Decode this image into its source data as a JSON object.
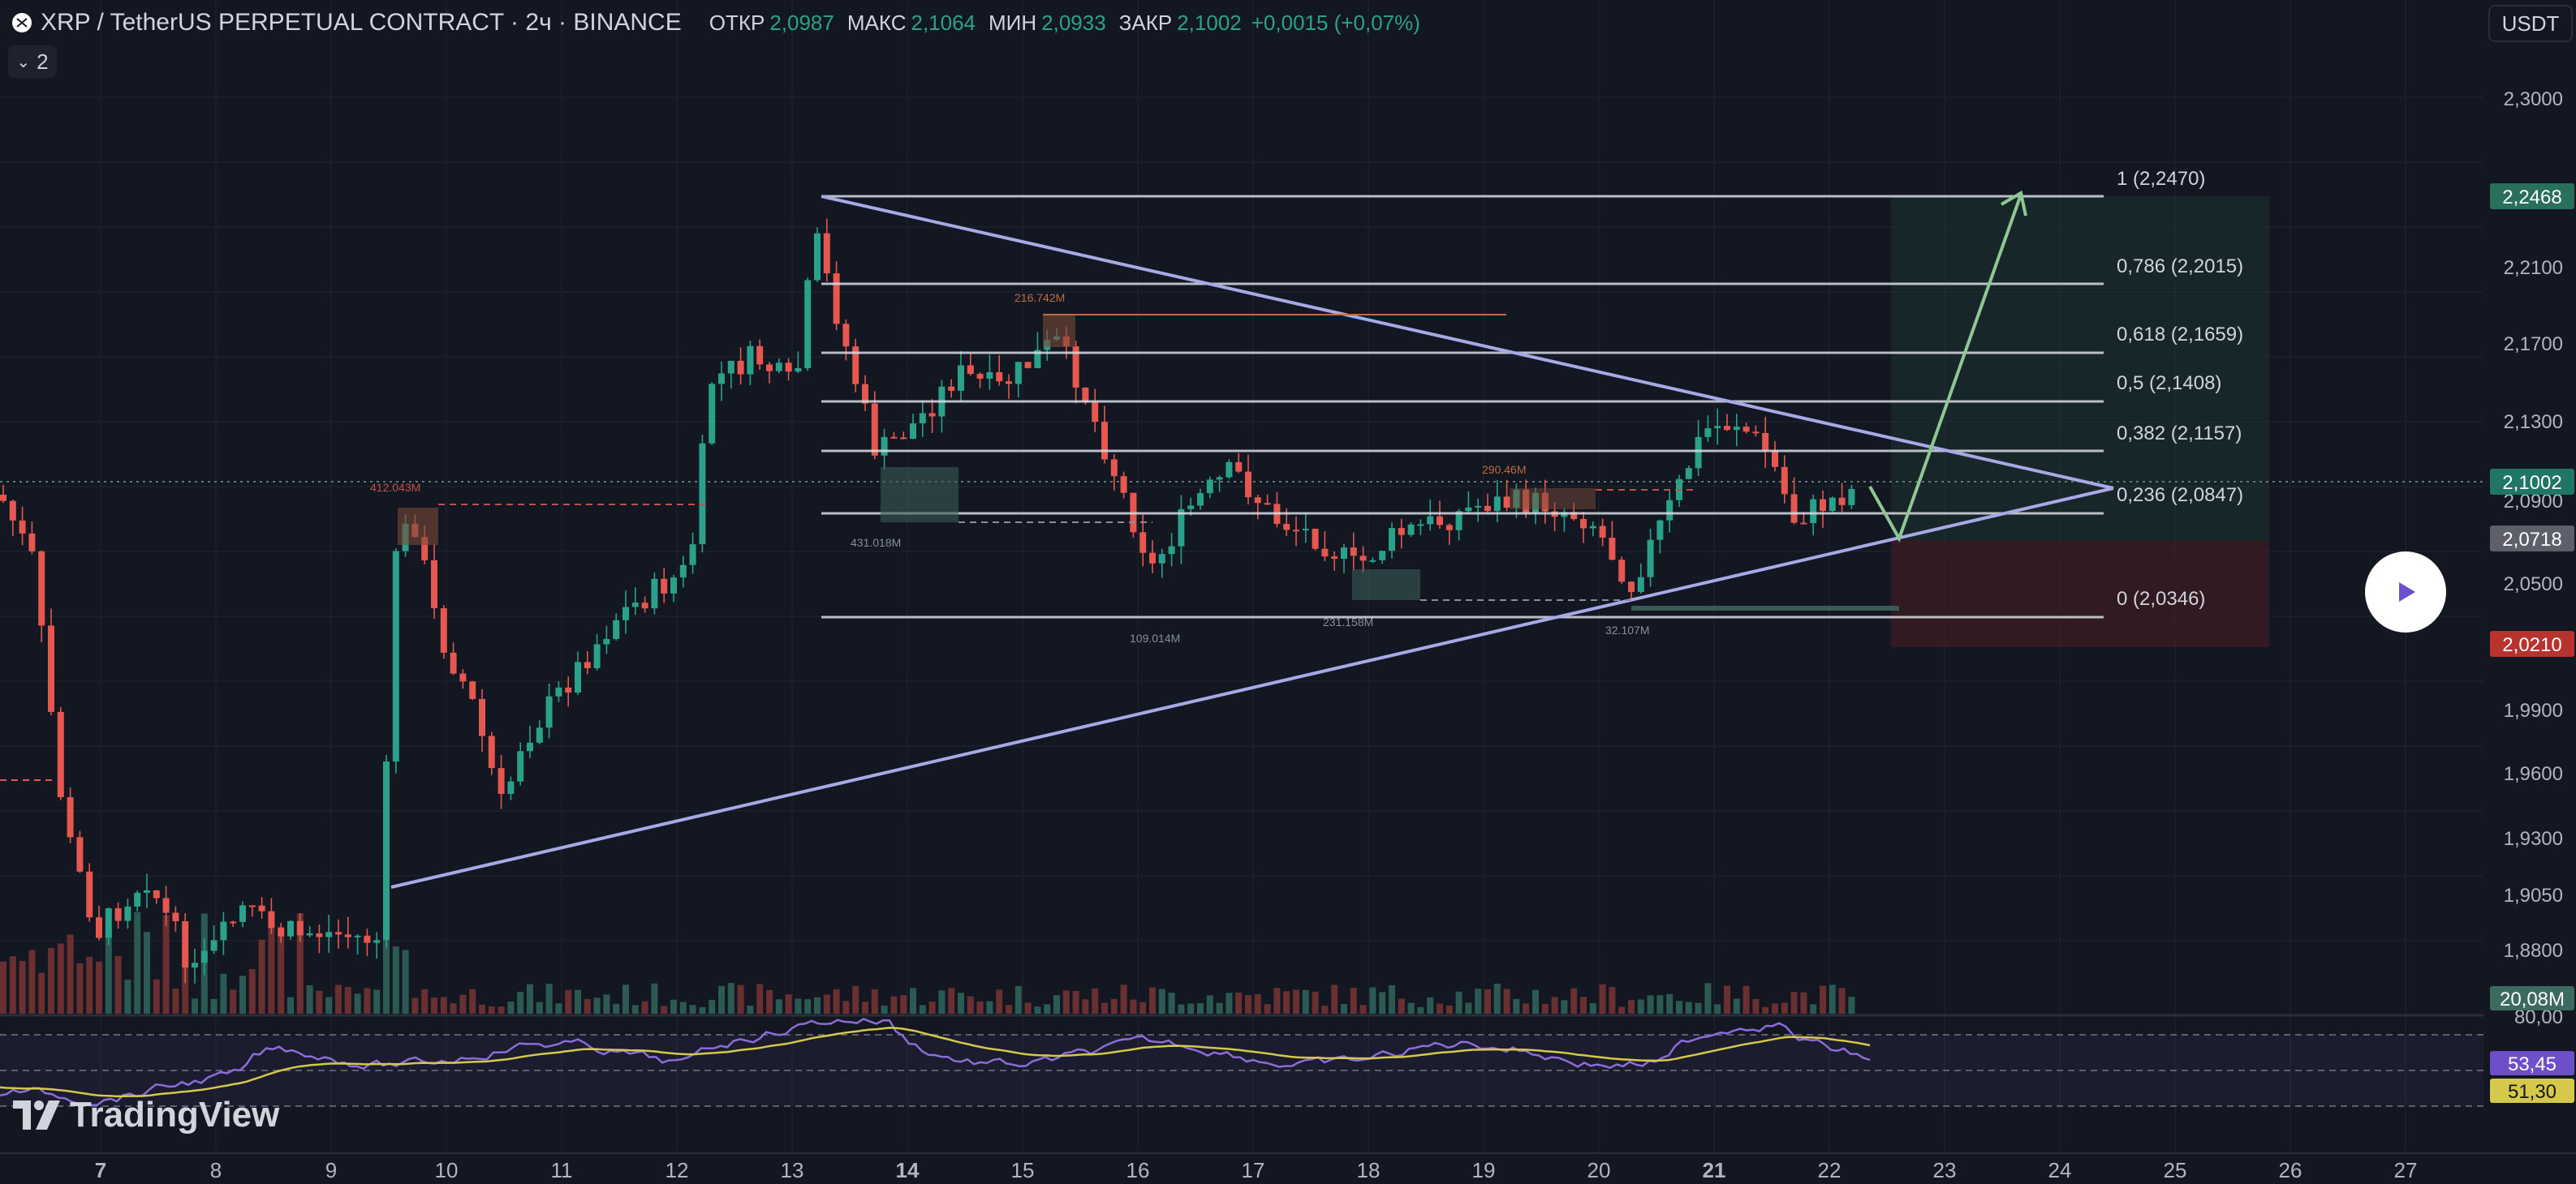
{
  "header": {
    "title": "XRP / TetherUS PERPETUAL CONTRACT · 2ч · BINANCE",
    "ohlc": [
      {
        "label": "ОТКР",
        "value": "2,0987"
      },
      {
        "label": "МАКС",
        "value": "2,1064"
      },
      {
        "label": "МИН",
        "value": "2,0933"
      },
      {
        "label": "ЗАКР",
        "value": "2,1002"
      }
    ],
    "change": "+0,0015 (+0,07%)",
    "indicator_collapse_count": "2",
    "currency": "USDT"
  },
  "colors": {
    "background": "#131722",
    "up": "#2aa18a",
    "down": "#e5574f",
    "trendline": "#a7a9e6",
    "fib": "#d8dbe2",
    "projection": "#8fc793",
    "rsi": "#8b6cd9",
    "rsi_ma": "#d6c84a",
    "text": "#d1d4dc",
    "grid": "#1e222d"
  },
  "price_axis": {
    "ticks": [
      "2,3000",
      "2,2100",
      "2,1700",
      "2,1300",
      "2,0900",
      "2,0500",
      "1,9900",
      "1,9600",
      "1,9300",
      "1,9050",
      "1,8800",
      "80,00"
    ],
    "badges": [
      {
        "label": "2,2468",
        "color": "#2a6e5c",
        "text_color": "#ffffff"
      },
      {
        "label": "2,1002",
        "color": "#1f7566",
        "text_color": "#ffffff"
      },
      {
        "label": "2,0718",
        "color": "#5d606b",
        "text_color": "#ffffff"
      },
      {
        "label": "2,0210",
        "color": "#b8332e",
        "text_color": "#ffffff"
      },
      {
        "label": "20,08M",
        "color": "#3d6a60",
        "text_color": "#ffffff"
      },
      {
        "label": "53,45",
        "color": "#6e4fc9",
        "text_color": "#ffffff"
      },
      {
        "label": "51,30",
        "color": "#d6c84a",
        "text_color": "#131722"
      }
    ]
  },
  "time_axis": {
    "labels": [
      {
        "text": "7",
        "bold": true
      },
      {
        "text": "8",
        "bold": false
      },
      {
        "text": "9",
        "bold": false
      },
      {
        "text": "10",
        "bold": false
      },
      {
        "text": "11",
        "bold": false
      },
      {
        "text": "12",
        "bold": false
      },
      {
        "text": "13",
        "bold": false
      },
      {
        "text": "14",
        "bold": true
      },
      {
        "text": "15",
        "bold": false
      },
      {
        "text": "16",
        "bold": false
      },
      {
        "text": "17",
        "bold": false
      },
      {
        "text": "18",
        "bold": false
      },
      {
        "text": "19",
        "bold": false
      },
      {
        "text": "20",
        "bold": false
      },
      {
        "text": "21",
        "bold": true
      },
      {
        "text": "22",
        "bold": false
      },
      {
        "text": "23",
        "bold": false
      },
      {
        "text": "24",
        "bold": false
      },
      {
        "text": "25",
        "bold": false
      },
      {
        "text": "26",
        "bold": false
      },
      {
        "text": "27",
        "bold": false
      }
    ]
  },
  "fib_levels": [
    {
      "label": "1 (2,2470)"
    },
    {
      "label": "0,786 (2,2015)"
    },
    {
      "label": "0,618 (2,1659)"
    },
    {
      "label": "0,5 (2,1408)"
    },
    {
      "label": "0,382 (2,1157)"
    },
    {
      "label": "0,236 (2,0847)"
    },
    {
      "label": "0 (2,0346)"
    }
  ],
  "volume_annotations": [
    "216.742M",
    "412.043M",
    "431.018M",
    "290.46M",
    "231.158M",
    "109.014M",
    "32.107M"
  ],
  "brand": "TradingView"
}
